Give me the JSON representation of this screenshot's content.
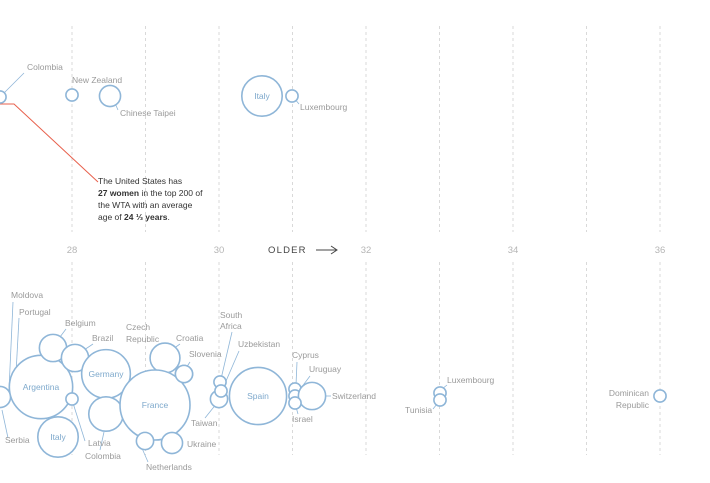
{
  "chart_data": {
    "type": "scatter",
    "xlabel": "OLDER",
    "x_ticks": [
      28,
      30,
      32,
      34,
      36
    ],
    "xlim": [
      26,
      37
    ],
    "annotation": {
      "l1": "The United States has",
      "l2_bold": "27 women",
      "l2_rest": " in the top 200 of",
      "l3": "the WTA with an average",
      "l4": "age of ",
      "l4_bold": "24 ⅓ years",
      "l4_end": "."
    },
    "top_points": [
      {
        "label": "Colombia",
        "x": 26.0,
        "count": 1
      },
      {
        "label": "New Zealand",
        "x": 28.0,
        "count": 1
      },
      {
        "label": "Chinese Taipei",
        "x": 28.5,
        "count": 3
      },
      {
        "label": "Italy",
        "x": 30.6,
        "count": 11
      },
      {
        "label": "Luxembourg",
        "x": 30.9,
        "count": 1
      }
    ],
    "bottom_points": [
      {
        "label": "Moldova",
        "x": 26.0,
        "count": 1
      },
      {
        "label": "Portugal",
        "x": 26.1,
        "count": 1
      },
      {
        "label": "Serbia",
        "x": 26.0,
        "count": 3
      },
      {
        "label": "Argentina",
        "x": 26.6,
        "count": 27
      },
      {
        "label": "Italy",
        "x": 26.8,
        "count": 11
      },
      {
        "label": "Belgium",
        "x": 26.7,
        "count": 5
      },
      {
        "label": "Brazil",
        "x": 27.0,
        "count": 5
      },
      {
        "label": "Latvia",
        "x": 27.0,
        "count": 1
      },
      {
        "label": "Germany",
        "x": 27.5,
        "count": 16
      },
      {
        "label": "Colombia",
        "x": 27.5,
        "count": 8
      },
      {
        "label": "Czech Republic",
        "x": 28.3,
        "count": 6
      },
      {
        "label": "Croatia",
        "x": 28.6,
        "count": 2
      },
      {
        "label": "France",
        "x": 28.2,
        "count": 33
      },
      {
        "label": "Netherlands",
        "x": 28.0,
        "count": 2
      },
      {
        "label": "Ukraine",
        "x": 28.4,
        "count": 3
      },
      {
        "label": "Slovenia",
        "x": 28.6,
        "count": 2
      },
      {
        "label": "Taiwan",
        "x": 29.9,
        "count": 2
      },
      {
        "label": "South Africa",
        "x": 29.9,
        "count": 1
      },
      {
        "label": "Uzbekistan",
        "x": 30.2,
        "count": 1
      },
      {
        "label": "Spain",
        "x": 30.5,
        "count": 22
      },
      {
        "label": "Cyprus",
        "x": 31.0,
        "count": 1
      },
      {
        "label": "Uruguay",
        "x": 31.0,
        "count": 1
      },
      {
        "label": "Switzerland",
        "x": 31.2,
        "count": 5
      },
      {
        "label": "Israel",
        "x": 31.0,
        "count": 1
      },
      {
        "label": "Luxembourg",
        "x": 34.0,
        "count": 1
      },
      {
        "label": "Tunisia",
        "x": 34.0,
        "count": 1
      },
      {
        "label": "Dominican Republic",
        "x": 36.0,
        "count": 1
      }
    ],
    "colors": {
      "bubble": "#8fb6d8",
      "highlight": "#e8604c",
      "grid": "#d9d9d9"
    }
  }
}
